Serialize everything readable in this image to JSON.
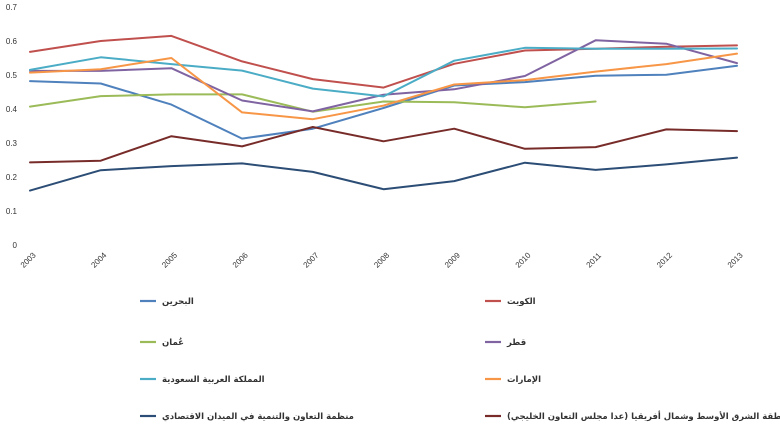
{
  "chart_data": {
    "type": "line",
    "title": "",
    "xlabel": "",
    "ylabel": "",
    "x": [
      "2003",
      "2004",
      "2005",
      "2006",
      "2007",
      "2008",
      "2009",
      "2010",
      "2011",
      "2012",
      "2013"
    ],
    "ylim": [
      0,
      0.7
    ],
    "yticks": [
      "0",
      "0.1",
      "0.2",
      "0.3",
      "0.4",
      "0.5",
      "0.6",
      "0.7"
    ],
    "grid": false,
    "legend_position": "bottom",
    "series": [
      {
        "name": "البحرين",
        "color": "#4F81BD",
        "values": [
          0.482,
          0.475,
          0.413,
          0.313,
          0.342,
          0.403,
          0.469,
          0.479,
          0.498,
          0.501,
          0.527
        ]
      },
      {
        "name": "الكويت",
        "color": "#C0504D",
        "values": [
          0.568,
          0.6,
          0.615,
          0.54,
          0.488,
          0.463,
          0.533,
          0.572,
          0.577,
          0.583,
          0.587
        ]
      },
      {
        "name": "عُمان",
        "color": "#9BBB59",
        "values": [
          0.407,
          0.438,
          0.443,
          0.443,
          0.392,
          0.422,
          0.42,
          0.405,
          0.422,
          null,
          null
        ]
      },
      {
        "name": "قطر",
        "color": "#8064A2",
        "values": [
          0.512,
          0.512,
          0.52,
          0.425,
          0.393,
          0.442,
          0.458,
          0.497,
          0.602,
          0.592,
          0.535
        ]
      },
      {
        "name": "المملكة العربية السعودية",
        "color": "#4BACC6",
        "values": [
          0.515,
          0.552,
          0.532,
          0.513,
          0.46,
          0.437,
          0.542,
          0.58,
          0.577,
          0.577,
          0.578
        ]
      },
      {
        "name": "الإمارات",
        "color": "#F79646",
        "values": [
          0.507,
          0.517,
          0.55,
          0.39,
          0.37,
          0.41,
          0.472,
          0.485,
          0.51,
          0.532,
          0.563
        ]
      },
      {
        "name": "منظمة التعاون والتنمية في الميدان الاقتصادي",
        "color": "#2C4D75",
        "values": [
          0.16,
          0.22,
          0.232,
          0.24,
          0.215,
          0.164,
          0.188,
          0.242,
          0.221,
          0.237,
          0.257
        ]
      },
      {
        "name": "منطقة الشرق الأوسط وشمال أفريقيا (عدا مجلس التعاون الخليجي)",
        "color": "#772C2A",
        "values": [
          0.243,
          0.248,
          0.32,
          0.29,
          0.347,
          0.305,
          0.342,
          0.283,
          0.288,
          0.34,
          0.335
        ]
      }
    ]
  }
}
